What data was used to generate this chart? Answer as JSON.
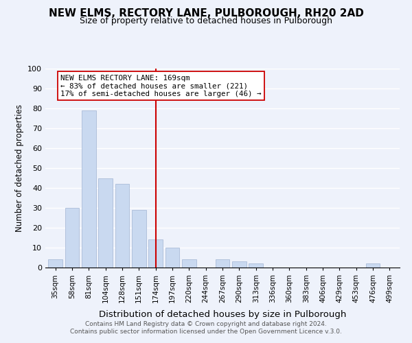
{
  "title": "NEW ELMS, RECTORY LANE, PULBOROUGH, RH20 2AD",
  "subtitle": "Size of property relative to detached houses in Pulborough",
  "xlabel": "Distribution of detached houses by size in Pulborough",
  "ylabel": "Number of detached properties",
  "bar_labels": [
    "35sqm",
    "58sqm",
    "81sqm",
    "104sqm",
    "128sqm",
    "151sqm",
    "174sqm",
    "197sqm",
    "220sqm",
    "244sqm",
    "267sqm",
    "290sqm",
    "313sqm",
    "336sqm",
    "360sqm",
    "383sqm",
    "406sqm",
    "429sqm",
    "453sqm",
    "476sqm",
    "499sqm"
  ],
  "bar_values": [
    4,
    30,
    79,
    45,
    42,
    29,
    14,
    10,
    4,
    0,
    4,
    3,
    2,
    0,
    0,
    0,
    0,
    0,
    0,
    2,
    0
  ],
  "bar_color": "#c9d9f0",
  "bar_edge_color": "#aabcd8",
  "vline_x": 6,
  "vline_color": "#cc0000",
  "annotation_title": "NEW ELMS RECTORY LANE: 169sqm",
  "annotation_line1": "← 83% of detached houses are smaller (221)",
  "annotation_line2": "17% of semi-detached houses are larger (46) →",
  "annotation_box_color": "#ffffff",
  "annotation_box_edge": "#cc0000",
  "ylim": [
    0,
    100
  ],
  "yticks": [
    0,
    10,
    20,
    30,
    40,
    50,
    60,
    70,
    80,
    90,
    100
  ],
  "footer1": "Contains HM Land Registry data © Crown copyright and database right 2024.",
  "footer2": "Contains public sector information licensed under the Open Government Licence v.3.0.",
  "bg_color": "#eef2fb",
  "grid_color": "#ffffff"
}
